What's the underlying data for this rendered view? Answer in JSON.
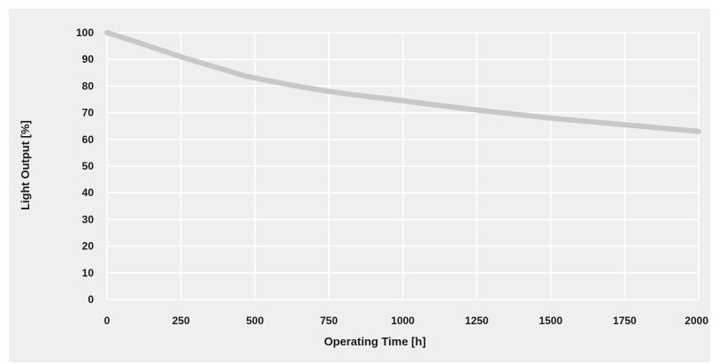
{
  "colors": {
    "plot_background": "#efefef",
    "gridline": "#ffffff",
    "curve": "#c8c8c8",
    "text": "#1a1a1a"
  },
  "chart_data": {
    "type": "line",
    "title": "",
    "xlabel": "Operating Time [h]",
    "ylabel": "Light  Output [%]",
    "xlim": [
      0,
      2000
    ],
    "ylim": [
      0,
      100
    ],
    "x_ticks": [
      0,
      250,
      500,
      750,
      1000,
      1250,
      1500,
      1750,
      2000
    ],
    "x_tick_labels": [
      "0",
      "250",
      "500",
      "750",
      "1000",
      "1250",
      "1500",
      "1750",
      "2000"
    ],
    "y_ticks": [
      0,
      10,
      20,
      30,
      40,
      50,
      60,
      70,
      80,
      90,
      100
    ],
    "y_tick_labels": [
      "0",
      "10",
      "20",
      "30",
      "40",
      "50",
      "60",
      "70",
      "80",
      "90",
      "100"
    ],
    "grid": true,
    "legend": "none",
    "series": [
      {
        "x": [
          0,
          100,
          250,
          400,
          500,
          750,
          1000,
          1250,
          1500,
          1750,
          2000
        ],
        "y": [
          100,
          96.5,
          91,
          86,
          83,
          78,
          74.5,
          71,
          68,
          65.5,
          63
        ]
      }
    ]
  }
}
